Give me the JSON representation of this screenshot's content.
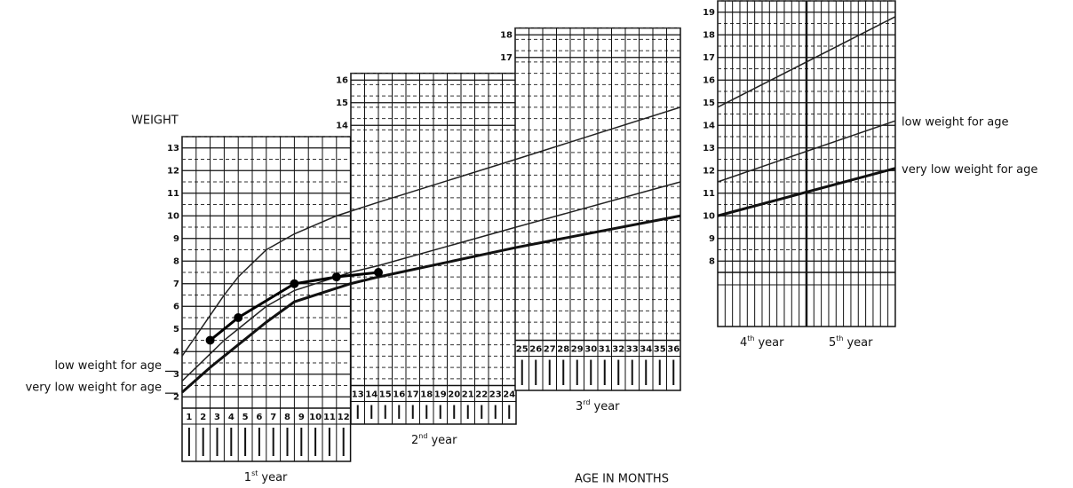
{
  "chart_data": {
    "type": "line",
    "y_label": "WEIGHT",
    "x_label": "AGE IN MONTHS",
    "x": [
      0,
      2,
      3,
      4,
      6,
      8,
      11,
      12,
      14,
      24,
      36,
      60
    ],
    "ylim": [
      1.5,
      19.5
    ],
    "series": [
      {
        "color": "#222",
        "values": [
          3.8,
          5.6,
          6.5,
          7.3,
          8.5,
          9.2,
          10,
          10.2,
          10.6,
          12.5,
          14.8,
          18.8
        ]
      },
      {
        "name": "low weight for age",
        "color": "#222",
        "values": [
          2.7,
          3.9,
          4.5,
          5,
          6,
          6.7,
          7.3,
          7.5,
          7.8,
          9.5,
          11.5,
          14.2
        ]
      },
      {
        "name": "very low weight for age",
        "color": "#111",
        "values": [
          2.2,
          3.3,
          3.8,
          4.3,
          5.3,
          6.2,
          6.8,
          7,
          7.3,
          8.6,
          10,
          12.1
        ]
      },
      {
        "color": "#000",
        "values": [
          null,
          4.5,
          null,
          5.5,
          null,
          7,
          7.3,
          null,
          7.5,
          null,
          null,
          null
        ]
      }
    ],
    "panels": [
      {
        "yticks": [
          2,
          3,
          4,
          5,
          6,
          7,
          8,
          9,
          10,
          11,
          12,
          13
        ],
        "xticks": [
          1,
          2,
          3,
          4,
          5,
          6,
          7,
          8,
          9,
          10,
          11,
          12
        ],
        "years": [
          {
            "number": "1",
            "suffix": "st",
            "word": "year"
          }
        ]
      },
      {
        "yticks": [
          14,
          15,
          16
        ],
        "xticks": [
          13,
          14,
          15,
          16,
          17,
          18,
          19,
          20,
          21,
          22,
          23,
          24
        ],
        "years": [
          {
            "number": "2",
            "suffix": "nd",
            "word": "year"
          }
        ]
      },
      {
        "yticks": [
          17,
          18
        ],
        "xticks": [
          25,
          26,
          27,
          28,
          29,
          30,
          31,
          32,
          33,
          34,
          35,
          36
        ],
        "years": [
          {
            "number": "3",
            "suffix": "rd",
            "word": "year"
          }
        ]
      },
      {
        "yticks": [
          8,
          9,
          10,
          11,
          12,
          13,
          14,
          15,
          16,
          17,
          18,
          19
        ],
        "years": [
          {
            "number": "4",
            "suffix": "th",
            "word": "year"
          },
          {
            "number": "5",
            "suffix": "th",
            "word": "year"
          }
        ]
      }
    ]
  }
}
